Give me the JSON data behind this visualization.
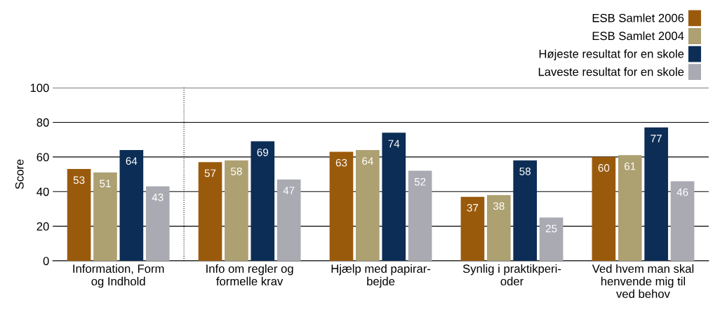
{
  "chart_data": {
    "type": "bar",
    "ylabel": "Score",
    "categories": [
      "Information, Form\nog Indhold",
      "Info om regler og\nformelle krav",
      "Hjælp med papirar-\nbejde",
      "Synlig i praktikperi-\noder",
      "Ved hvem man skal\nhenvende mig til\nved behov"
    ],
    "series": [
      {
        "name": "ESB Samlet 2006",
        "color": "#9a5a0c",
        "values": [
          53,
          57,
          63,
          37,
          60
        ]
      },
      {
        "name": "ESB Samlet 2004",
        "color": "#ada071",
        "values": [
          51,
          58,
          64,
          38,
          61
        ]
      },
      {
        "name": "Højeste resultat for en skole",
        "color": "#0c2d55",
        "values": [
          64,
          69,
          74,
          58,
          77
        ]
      },
      {
        "name": "Laveste resultat for en skole",
        "color": "#a9aab2",
        "values": [
          43,
          47,
          52,
          25,
          46
        ]
      }
    ],
    "ylim": [
      0,
      100
    ],
    "yticks": [
      0,
      20,
      40,
      60,
      80,
      100
    ],
    "grid": "y",
    "legend": "top right",
    "data_labels": true
  }
}
